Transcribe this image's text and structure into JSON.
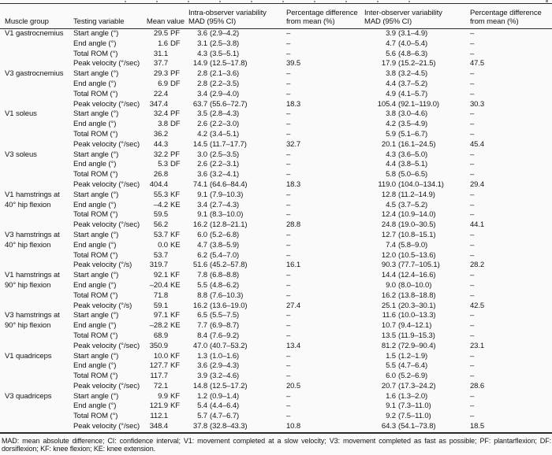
{
  "colors": {
    "background": "#fafafa",
    "text": "#141414",
    "rule": "#2a2a2a"
  },
  "header": {
    "muscle_group": "Muscle group",
    "testing_variable": "Testing variable",
    "mean_value": "Mean value",
    "intra_line1": "Intra-observer variability",
    "intra_line2": "MAD (95% CI)",
    "pct_line1": "Percentage difference",
    "pct_line2": "from mean (%)",
    "inter_line1": "Inter-observer variability",
    "inter_line2": "MAD (95% CI)"
  },
  "groups": [
    {
      "name": "V1 gastrocnemius",
      "rows": [
        {
          "variable": "Start angle (°)",
          "mean": "29.5",
          "unit": "PF",
          "intra_mad": "3.6",
          "intra_ci": "(2.9–4.2)",
          "intra_pct": "–",
          "inter_mad": "3.9",
          "inter_ci": "(3.1–4.9)",
          "inter_pct": "–"
        },
        {
          "variable": "End angle (°)",
          "mean": "1.6",
          "unit": "DF",
          "intra_mad": "3.1",
          "intra_ci": "(2.5–3.8)",
          "intra_pct": "–",
          "inter_mad": "4.7",
          "inter_ci": "(4.0–5.4)",
          "inter_pct": "–"
        },
        {
          "variable": "Total ROM (°)",
          "mean": "31.1",
          "unit": "",
          "intra_mad": "4.3",
          "intra_ci": "(3.5–5.1)",
          "intra_pct": "–",
          "inter_mad": "5.6",
          "inter_ci": "(4.8–6.3)",
          "inter_pct": "–"
        },
        {
          "variable": "Peak velocity (°/sec)",
          "mean": "37.7",
          "unit": "",
          "intra_mad": "14.9",
          "intra_ci": "(12.5–17.8)",
          "intra_pct": "39.5",
          "inter_mad": "17.9",
          "inter_ci": "(15.2–21.5)",
          "inter_pct": "47.5"
        }
      ]
    },
    {
      "name": "V3 gastrocnemius",
      "rows": [
        {
          "variable": "Start angle (°)",
          "mean": "29.3",
          "unit": "PF",
          "intra_mad": "2.8",
          "intra_ci": "(2.1–3.6)",
          "intra_pct": "–",
          "inter_mad": "3.8",
          "inter_ci": "(3.2–4.5)",
          "inter_pct": "–"
        },
        {
          "variable": "End angle (°)",
          "mean": "6.9",
          "unit": "DF",
          "intra_mad": "2.8",
          "intra_ci": "(2.2–3.5)",
          "intra_pct": "–",
          "inter_mad": "4.4",
          "inter_ci": "(3.7–5.2)",
          "inter_pct": "–"
        },
        {
          "variable": "Total ROM (°)",
          "mean": "22.4",
          "unit": "",
          "intra_mad": "3.4",
          "intra_ci": "(2.9–4.0)",
          "intra_pct": "–",
          "inter_mad": "4.9",
          "inter_ci": "(4.1–5.7)",
          "inter_pct": "–"
        },
        {
          "variable": "Peak velocity (°/sec)",
          "mean": "347.4",
          "unit": "",
          "intra_mad": "63.7",
          "intra_ci": "(55.6–72.7)",
          "intra_pct": "18.3",
          "inter_mad": "105.4",
          "inter_ci": "(92.1–119.0)",
          "inter_pct": "30.3"
        }
      ]
    },
    {
      "name": "V1 soleus",
      "rows": [
        {
          "variable": "Start angle (°)",
          "mean": "32.4",
          "unit": "PF",
          "intra_mad": "3.5",
          "intra_ci": "(2.8–4.3)",
          "intra_pct": "–",
          "inter_mad": "3.8",
          "inter_ci": "(3.0–4.6)",
          "inter_pct": "–"
        },
        {
          "variable": "End angle (°)",
          "mean": "3.8",
          "unit": "DF",
          "intra_mad": "2.6",
          "intra_ci": "(2.2–3.0)",
          "intra_pct": "–",
          "inter_mad": "4.2",
          "inter_ci": "(3.5–4.9)",
          "inter_pct": "–"
        },
        {
          "variable": "Total ROM (°)",
          "mean": "36.2",
          "unit": "",
          "intra_mad": "4.2",
          "intra_ci": "(3.4–5.1)",
          "intra_pct": "–",
          "inter_mad": "5.9",
          "inter_ci": "(5.1–6.7)",
          "inter_pct": "–"
        },
        {
          "variable": "Peak velocity (°/sec)",
          "mean": "44.3",
          "unit": "",
          "intra_mad": "14.5",
          "intra_ci": "(11.7–17.7)",
          "intra_pct": "32.7",
          "inter_mad": "20.1",
          "inter_ci": "(16.1–24.5)",
          "inter_pct": "45.4"
        }
      ]
    },
    {
      "name": "V3 soleus",
      "rows": [
        {
          "variable": "Start angle (°)",
          "mean": "32.2",
          "unit": "PF",
          "intra_mad": "3.0",
          "intra_ci": "(2.5–3.5)",
          "intra_pct": "–",
          "inter_mad": "4.3",
          "inter_ci": "(3.6–5.0)",
          "inter_pct": "–"
        },
        {
          "variable": "End angle (°)",
          "mean": "5.3",
          "unit": "DF",
          "intra_mad": "2.6",
          "intra_ci": "(2.2–3.1)",
          "intra_pct": "–",
          "inter_mad": "4.4",
          "inter_ci": "(3.8–5.1)",
          "inter_pct": "–"
        },
        {
          "variable": "Total ROM (°)",
          "mean": "26.8",
          "unit": "",
          "intra_mad": "3.6",
          "intra_ci": "(3.2–4.1)",
          "intra_pct": "–",
          "inter_mad": "5.8",
          "inter_ci": "(5.0–6.5)",
          "inter_pct": "–"
        },
        {
          "variable": "Peak velocity (°/sec)",
          "mean": "404.4",
          "unit": "",
          "intra_mad": "74.1",
          "intra_ci": "(64.6–84.4)",
          "intra_pct": "18.3",
          "inter_mad": "119.0",
          "inter_ci": "(104.0–134.1)",
          "inter_pct": "29.4"
        }
      ]
    },
    {
      "name": "V1 hamstrings at 40° hip flexion",
      "rows": [
        {
          "variable": "Start angle (°)",
          "mean": "55.3",
          "unit": "KF",
          "intra_mad": "9.1",
          "intra_ci": "(7.9–10.3)",
          "intra_pct": "–",
          "inter_mad": "12.8",
          "inter_ci": "(11.2–14.9)",
          "inter_pct": "–"
        },
        {
          "variable": "End angle (°)",
          "mean": "–4.2",
          "unit": "KE",
          "intra_mad": "3.4",
          "intra_ci": "(2.7–4.3)",
          "intra_pct": "–",
          "inter_mad": "4.5",
          "inter_ci": "(3.7–5.2)",
          "inter_pct": "–"
        },
        {
          "variable": "Total ROM (°)",
          "mean": "59.5",
          "unit": "",
          "intra_mad": "9.1",
          "intra_ci": "(8.3–10.0)",
          "intra_pct": "–",
          "inter_mad": "12.4",
          "inter_ci": "(10.9–14.0)",
          "inter_pct": "–"
        },
        {
          "variable": "Peak velocity (°/sec)",
          "mean": "56.2",
          "unit": "",
          "intra_mad": "16.2",
          "intra_ci": "(12.8–21.1)",
          "intra_pct": "28.8",
          "inter_mad": "24.8",
          "inter_ci": "(19.0–30.5)",
          "inter_pct": "44.1"
        }
      ]
    },
    {
      "name": "V3 hamstrings at 40° hip flexion",
      "rows": [
        {
          "variable": "Start angle (°)",
          "mean": "53.7",
          "unit": "KF",
          "intra_mad": "6.0",
          "intra_ci": "(5.2–6.8)",
          "intra_pct": "–",
          "inter_mad": "12.7",
          "inter_ci": "(10.8–15.1)",
          "inter_pct": "–"
        },
        {
          "variable": "End angle (°)",
          "mean": "0.0",
          "unit": "KE",
          "intra_mad": "4.7",
          "intra_ci": "(3.8–5.9)",
          "intra_pct": "–",
          "inter_mad": "7.4",
          "inter_ci": "(5.8–9.0)",
          "inter_pct": "–"
        },
        {
          "variable": "Total ROM (°)",
          "mean": "53.7",
          "unit": "",
          "intra_mad": "6.2",
          "intra_ci": "(5.4–7.0)",
          "intra_pct": "–",
          "inter_mad": "12.0",
          "inter_ci": "(10.5–13.6)",
          "inter_pct": "–"
        },
        {
          "variable": "Peak velocity (°/s)",
          "mean": "319.7",
          "unit": "",
          "intra_mad": "51.6",
          "intra_ci": "(45.2–57.8)",
          "intra_pct": "16.1",
          "inter_mad": "90.3",
          "inter_ci": "(77.7–105.1)",
          "inter_pct": "28.2"
        }
      ]
    },
    {
      "name": "V1 hamstrings at 90° hip flexion",
      "rows": [
        {
          "variable": "Start angle (°)",
          "mean": "92.1",
          "unit": "KF",
          "intra_mad": "7.8",
          "intra_ci": "(6.8–8.8)",
          "intra_pct": "–",
          "inter_mad": "14.4",
          "inter_ci": "(12.4–16.6)",
          "inter_pct": "–"
        },
        {
          "variable": "End angle (°)",
          "mean": "–20.4",
          "unit": "KE",
          "intra_mad": "5.5",
          "intra_ci": "(4.8–6.2)",
          "intra_pct": "–",
          "inter_mad": "9.0",
          "inter_ci": "(8.0–10.0)",
          "inter_pct": "–"
        },
        {
          "variable": "Total ROM (°)",
          "mean": "71.8",
          "unit": "",
          "intra_mad": "8.8",
          "intra_ci": "(7.6–10.3)",
          "intra_pct": "–",
          "inter_mad": "16.2",
          "inter_ci": "(13.8–18.8)",
          "inter_pct": "–"
        },
        {
          "variable": "Peak velocity (°/s)",
          "mean": "59.1",
          "unit": "",
          "intra_mad": "16.2",
          "intra_ci": "(13.6–19.0)",
          "intra_pct": "27.4",
          "inter_mad": "25.1",
          "inter_ci": "(20.3–30.1)",
          "inter_pct": "42.5"
        }
      ]
    },
    {
      "name": "V3 hamstrings at 90° hip flexion",
      "rows": [
        {
          "variable": "Start angle (°)",
          "mean": "97.1",
          "unit": "KF",
          "intra_mad": "6.5",
          "intra_ci": "(5.5–7.5)",
          "intra_pct": "–",
          "inter_mad": "11.6",
          "inter_ci": "(10.0–13.3)",
          "inter_pct": "–"
        },
        {
          "variable": "End angle (°)",
          "mean": "–28.2",
          "unit": "KE",
          "intra_mad": "7.7",
          "intra_ci": "(6.9–8.7)",
          "intra_pct": "–",
          "inter_mad": "10.7",
          "inter_ci": "(9.4–12.1)",
          "inter_pct": "–"
        },
        {
          "variable": "Total ROM (°)",
          "mean": "68.9",
          "unit": "",
          "intra_mad": "8.4",
          "intra_ci": "(7.6–9.2)",
          "intra_pct": "–",
          "inter_mad": "13.5",
          "inter_ci": "(11.9–15.3)",
          "inter_pct": "–"
        },
        {
          "variable": "Peak velocity (°/sec)",
          "mean": "350.9",
          "unit": "",
          "intra_mad": "47.0",
          "intra_ci": "(40.7–53.2)",
          "intra_pct": "13.4",
          "inter_mad": "81.2",
          "inter_ci": "(72.9–90.4)",
          "inter_pct": "23.1"
        }
      ]
    },
    {
      "name": "V1 quadriceps",
      "rows": [
        {
          "variable": "Start angle (°)",
          "mean": "10.0",
          "unit": "KF",
          "intra_mad": "1.3",
          "intra_ci": "(1.0–1.6)",
          "intra_pct": "–",
          "inter_mad": "1.5",
          "inter_ci": "(1.2–1.9)",
          "inter_pct": "–"
        },
        {
          "variable": "End angle (°)",
          "mean": "127.7",
          "unit": "KF",
          "intra_mad": "3.6",
          "intra_ci": "(2.9–4.3)",
          "intra_pct": "–",
          "inter_mad": "5.5",
          "inter_ci": "(4.7–6.4)",
          "inter_pct": "–"
        },
        {
          "variable": "Total ROM (°)",
          "mean": "117.7",
          "unit": "",
          "intra_mad": "3.9",
          "intra_ci": "(3.2–4.6)",
          "intra_pct": "–",
          "inter_mad": "6.0",
          "inter_ci": "(5.2–6.9)",
          "inter_pct": "–"
        },
        {
          "variable": "Peak velocity (°/sec)",
          "mean": "72.1",
          "unit": "",
          "intra_mad": "14.8",
          "intra_ci": "(12.5–17.2)",
          "intra_pct": "20.5",
          "inter_mad": "20.7",
          "inter_ci": "(17.3–24.2)",
          "inter_pct": "28.6"
        }
      ]
    },
    {
      "name": "V3 quadriceps",
      "rows": [
        {
          "variable": "Start angle (°)",
          "mean": "9.9",
          "unit": "KF",
          "intra_mad": "1.2",
          "intra_ci": "(0.9–1.4)",
          "intra_pct": "–",
          "inter_mad": "1.6",
          "inter_ci": "(1.3–2.0)",
          "inter_pct": "–"
        },
        {
          "variable": "End angle (°)",
          "mean": "121.9",
          "unit": "KF",
          "intra_mad": "5.4",
          "intra_ci": "(4.4–6.4)",
          "intra_pct": "–",
          "inter_mad": "9.1",
          "inter_ci": "(7.3–11.0)",
          "inter_pct": "–"
        },
        {
          "variable": "Total ROM (°)",
          "mean": "112.1",
          "unit": "",
          "intra_mad": "5.7",
          "intra_ci": "(4.7–6.7)",
          "intra_pct": "–",
          "inter_mad": "9.2",
          "inter_ci": "(7.5–11.0)",
          "inter_pct": "–"
        },
        {
          "variable": "Peak velocity (°/sec)",
          "mean": "348.4",
          "unit": "",
          "intra_mad": "37.8",
          "intra_ci": "(32.8–43.3)",
          "intra_pct": "10.8",
          "inter_mad": "64.3",
          "inter_ci": "(54.1–73.8)",
          "inter_pct": "18.5"
        }
      ]
    }
  ],
  "footnote": "MAD: mean absolute difference; CI: confidence interval; V1: movement completed at a slow velocity; V3: movement completed as fast as possible; PF: plantarflexion; DF: dorsiflexion; KF: knee flexion; KE: knee extension."
}
